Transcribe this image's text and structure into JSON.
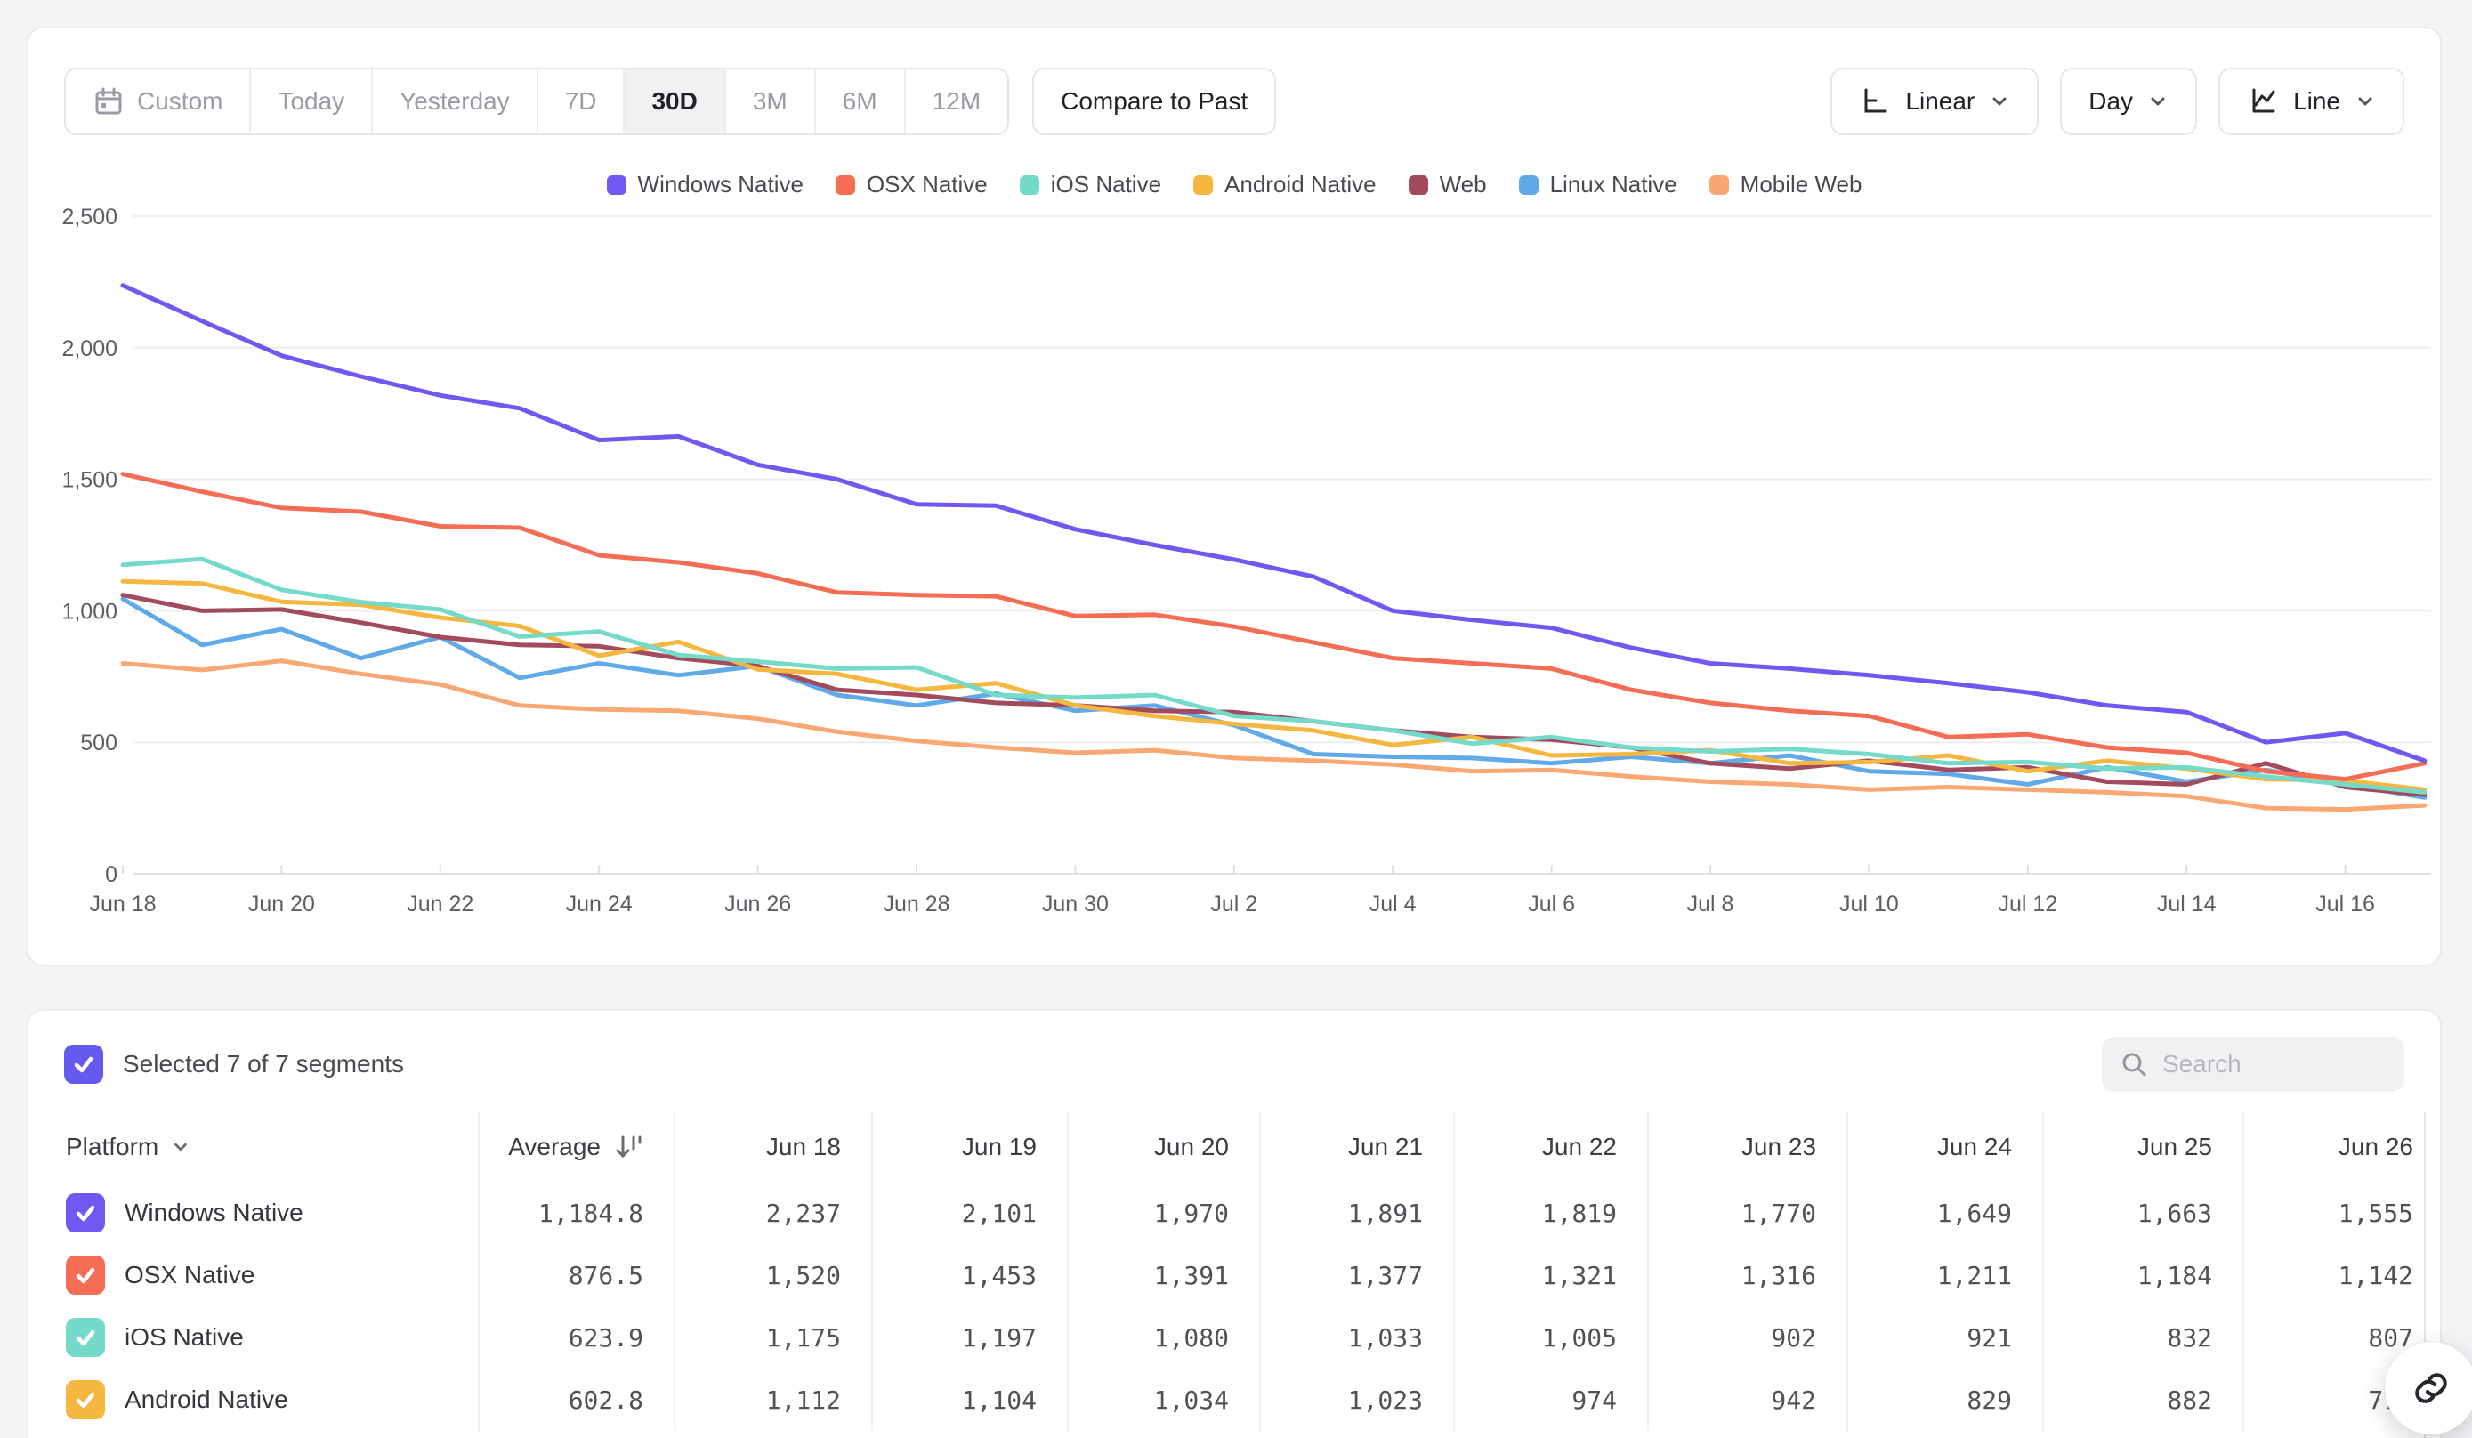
{
  "toolbar": {
    "ranges": [
      {
        "label": "Custom",
        "icon": "calendar",
        "active": false
      },
      {
        "label": "Today",
        "active": false
      },
      {
        "label": "Yesterday",
        "active": false
      },
      {
        "label": "7D",
        "active": false
      },
      {
        "label": "30D",
        "active": true
      },
      {
        "label": "3M",
        "active": false
      },
      {
        "label": "6M",
        "active": false
      },
      {
        "label": "12M",
        "active": false
      }
    ],
    "compare_label": "Compare to Past",
    "scale_label": "Linear",
    "interval_label": "Day",
    "chart_type_label": "Line"
  },
  "legend": [
    {
      "label": "Windows Native",
      "color": "#7257F2"
    },
    {
      "label": "OSX Native",
      "color": "#F66D55"
    },
    {
      "label": "iOS Native",
      "color": "#74DBCA"
    },
    {
      "label": "Android Native",
      "color": "#F4B73F"
    },
    {
      "label": "Web",
      "color": "#A34B5E"
    },
    {
      "label": "Linux Native",
      "color": "#61AAE9"
    },
    {
      "label": "Mobile Web",
      "color": "#F9A873"
    }
  ],
  "chart_data": {
    "type": "line",
    "title": "",
    "xlabel": "",
    "ylabel": "",
    "ylim": [
      0,
      2500
    ],
    "yticks": [
      "0",
      "500",
      "1,000",
      "1,500",
      "2,000",
      "2,500"
    ],
    "grid": true,
    "legend_position": "top-center",
    "x": [
      "Jun 18",
      "Jun 19",
      "Jun 20",
      "Jun 21",
      "Jun 22",
      "Jun 23",
      "Jun 24",
      "Jun 25",
      "Jun 26",
      "Jun 27",
      "Jun 28",
      "Jun 29",
      "Jun 30",
      "Jul 1",
      "Jul 2",
      "Jul 3",
      "Jul 4",
      "Jul 5",
      "Jul 6",
      "Jul 7",
      "Jul 8",
      "Jul 9",
      "Jul 10",
      "Jul 11",
      "Jul 12",
      "Jul 13",
      "Jul 14",
      "Jul 15",
      "Jul 16",
      "Jul 17"
    ],
    "xtick_labels_shown": [
      "Jun 18",
      "Jun 20",
      "Jun 22",
      "Jun 24",
      "Jun 26",
      "Jun 28",
      "Jun 30",
      "Jul 2",
      "Jul 4",
      "Jul 6",
      "Jul 8",
      "Jul 10",
      "Jul 12",
      "Jul 14",
      "Jul 16"
    ],
    "series": [
      {
        "name": "Windows Native",
        "color": "#7257F2",
        "values": [
          2237,
          2101,
          1970,
          1891,
          1819,
          1770,
          1649,
          1663,
          1555,
          1500,
          1405,
          1400,
          1310,
          1250,
          1195,
          1130,
          1000,
          965,
          935,
          860,
          800,
          780,
          755,
          725,
          690,
          640,
          615,
          500,
          535,
          430
        ]
      },
      {
        "name": "OSX Native",
        "color": "#F66D55",
        "values": [
          1520,
          1453,
          1391,
          1377,
          1321,
          1316,
          1211,
          1184,
          1142,
          1070,
          1060,
          1055,
          980,
          985,
          940,
          880,
          820,
          800,
          780,
          700,
          650,
          620,
          600,
          520,
          530,
          480,
          460,
          390,
          360,
          420
        ]
      },
      {
        "name": "iOS Native",
        "color": "#74DBCA",
        "values": [
          1175,
          1197,
          1080,
          1033,
          1005,
          902,
          921,
          832,
          807,
          780,
          785,
          680,
          670,
          680,
          600,
          580,
          545,
          495,
          520,
          480,
          465,
          475,
          455,
          420,
          425,
          400,
          405,
          370,
          340,
          310
        ]
      },
      {
        "name": "Android Native",
        "color": "#F4B73F",
        "values": [
          1112,
          1104,
          1034,
          1023,
          974,
          942,
          829,
          882,
          777,
          760,
          700,
          725,
          640,
          600,
          570,
          545,
          490,
          520,
          450,
          455,
          470,
          420,
          425,
          450,
          390,
          430,
          400,
          360,
          355,
          320
        ]
      },
      {
        "name": "Web",
        "color": "#A34B5E",
        "values": [
          1060,
          1000,
          1005,
          955,
          900,
          870,
          865,
          820,
          790,
          700,
          680,
          650,
          640,
          620,
          615,
          580,
          545,
          520,
          510,
          480,
          420,
          400,
          430,
          395,
          405,
          350,
          340,
          420,
          330,
          300
        ]
      },
      {
        "name": "Linux Native",
        "color": "#61AAE9",
        "values": [
          1045,
          870,
          930,
          820,
          900,
          745,
          800,
          755,
          790,
          680,
          640,
          685,
          620,
          640,
          565,
          455,
          445,
          440,
          420,
          445,
          420,
          450,
          390,
          380,
          340,
          405,
          350,
          395,
          340,
          290
        ]
      },
      {
        "name": "Mobile Web",
        "color": "#F9A873",
        "values": [
          800,
          775,
          810,
          760,
          720,
          640,
          625,
          620,
          590,
          540,
          505,
          480,
          460,
          470,
          440,
          430,
          415,
          390,
          395,
          370,
          350,
          340,
          320,
          330,
          320,
          310,
          295,
          250,
          245,
          260
        ]
      }
    ]
  },
  "table": {
    "selected_text": "Selected 7 of 7 segments",
    "selected_checkbox_color": "#655AF0",
    "search_placeholder": "Search",
    "columns": [
      "Platform",
      "Average",
      "Jun 18",
      "Jun 19",
      "Jun 20",
      "Jun 21",
      "Jun 22",
      "Jun 23",
      "Jun 24",
      "Jun 25",
      "Jun 26"
    ],
    "rows": [
      {
        "label": "Windows Native",
        "color": "#7257F2",
        "values": [
          "1,184.8",
          "2,237",
          "2,101",
          "1,970",
          "1,891",
          "1,819",
          "1,770",
          "1,649",
          "1,663",
          "1,555"
        ]
      },
      {
        "label": "OSX Native",
        "color": "#F66D55",
        "values": [
          "876.5",
          "1,520",
          "1,453",
          "1,391",
          "1,377",
          "1,321",
          "1,316",
          "1,211",
          "1,184",
          "1,142"
        ]
      },
      {
        "label": "iOS Native",
        "color": "#74DBCA",
        "values": [
          "623.9",
          "1,175",
          "1,197",
          "1,080",
          "1,033",
          "1,005",
          "902",
          "921",
          "832",
          "807"
        ]
      },
      {
        "label": "Android Native",
        "color": "#F4B73F",
        "values": [
          "602.8",
          "1,112",
          "1,104",
          "1,034",
          "1,023",
          "974",
          "942",
          "829",
          "882",
          "777"
        ]
      }
    ]
  }
}
